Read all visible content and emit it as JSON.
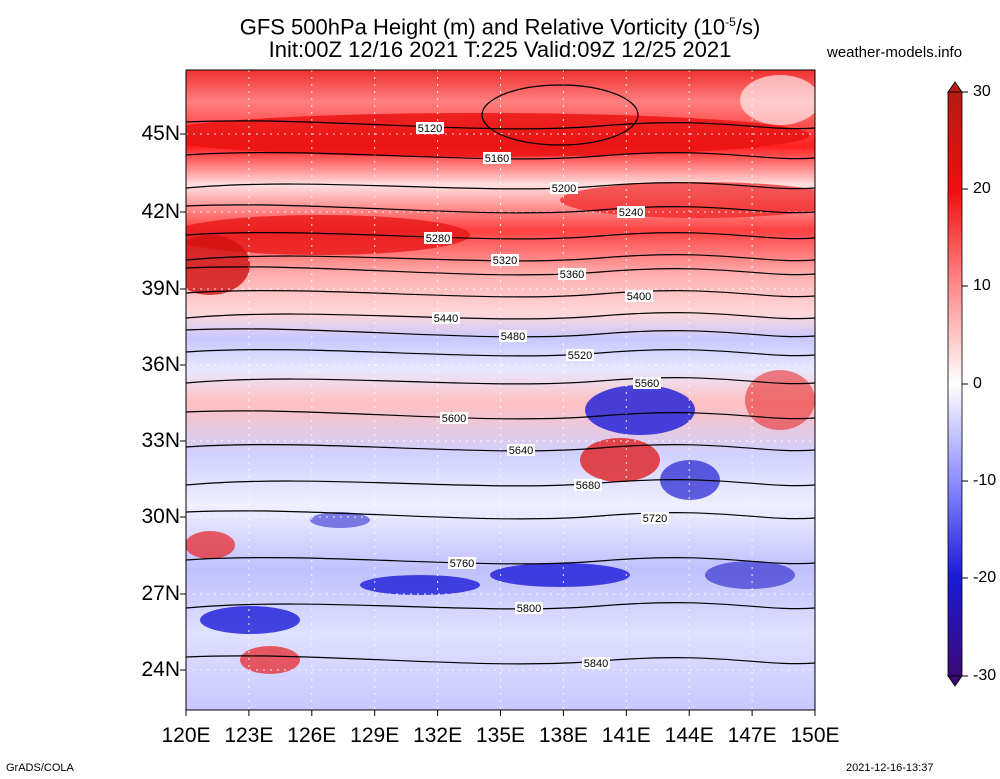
{
  "title_line1": "GFS 500hPa Height (m) and Relative Vorticity (10",
  "title_line1_sup": "-5",
  "title_line1_end": "/s)",
  "title_line2": "Init:00Z 12/16 2021 T:225 Valid:09Z 12/25 2021",
  "site": "weather-models.info",
  "footer_left": "GrADS/COLA",
  "footer_right": "2021-12-16-13:37",
  "lat_labels": [
    "45N",
    "42N",
    "39N",
    "36N",
    "33N",
    "30N",
    "27N",
    "24N"
  ],
  "lon_labels": [
    "120E",
    "123E",
    "126E",
    "129E",
    "132E",
    "135E",
    "138E",
    "141E",
    "144E",
    "147E",
    "150E"
  ],
  "colorbar": {
    "labels": [
      "30",
      "20",
      "10",
      "0",
      "-10",
      "-20",
      "-30"
    ],
    "colors": {
      "high": "#b51b12",
      "mid_red": "#f01010",
      "pale": "#ffffff",
      "mid_blue": "#1a1ad8",
      "low": "#3b0a78"
    }
  },
  "contours": [
    {
      "label": "5120"
    },
    {
      "label": "5160"
    },
    {
      "label": "5200"
    },
    {
      "label": "5240"
    },
    {
      "label": "5280"
    },
    {
      "label": "5320"
    },
    {
      "label": "5360"
    },
    {
      "label": "5400"
    },
    {
      "label": "5440"
    },
    {
      "label": "5480"
    },
    {
      "label": "5520"
    },
    {
      "label": "5560"
    },
    {
      "label": "5600"
    },
    {
      "label": "5640"
    },
    {
      "label": "5680"
    },
    {
      "label": "5720"
    },
    {
      "label": "5760"
    },
    {
      "label": "5800"
    },
    {
      "label": "5840"
    }
  ]
}
